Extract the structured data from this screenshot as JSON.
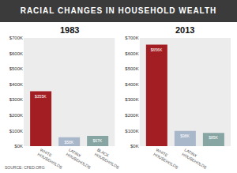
{
  "title": "RACIAL CHANGES IN HOUSEHOLD WEALTH",
  "source": "SOURCE: CFED.ORG",
  "chart_data": [
    {
      "type": "bar",
      "title": "1983",
      "categories": [
        "WHITE HOUSEHOLDS",
        "LATINX HOUSEHOLDS",
        "BLACK HOUSEHOLDS"
      ],
      "values": [
        355,
        58,
        67
      ],
      "value_labels": [
        "$355K",
        "$58K",
        "$67K"
      ],
      "colors": [
        "#a31e22",
        "#a9b7cb",
        "#86a5a3"
      ],
      "data_labels": true,
      "grid": false,
      "ylim": [
        0,
        700
      ],
      "yticks": [
        {
          "value": 0,
          "label": "$0K"
        },
        {
          "value": 100,
          "label": "$100K"
        },
        {
          "value": 200,
          "label": "$200K"
        },
        {
          "value": 300,
          "label": "$300K"
        },
        {
          "value": 400,
          "label": "$400K"
        },
        {
          "value": 500,
          "label": "$500K"
        },
        {
          "value": 600,
          "label": "$600K"
        },
        {
          "value": 700,
          "label": "$700K"
        }
      ]
    },
    {
      "type": "bar",
      "title": "2013",
      "categories": [
        "WHITE HOUSEHOLDS",
        "LATINX HOUSEHOLDS",
        "BLACK HOUSEHOLDS"
      ],
      "values": [
        656,
        98,
        85
      ],
      "value_labels": [
        "$656K",
        "$98K",
        "$85K"
      ],
      "colors": [
        "#a31e22",
        "#a9b7cb",
        "#86a5a3"
      ],
      "data_labels": true,
      "grid": false,
      "ylim": [
        0,
        700
      ],
      "yticks": [
        {
          "value": 0,
          "label": "$0K"
        },
        {
          "value": 100,
          "label": "$100K"
        },
        {
          "value": 200,
          "label": "$200K"
        },
        {
          "value": 300,
          "label": "$300K"
        },
        {
          "value": 400,
          "label": "$400K"
        },
        {
          "value": 500,
          "label": "$500K"
        },
        {
          "value": 600,
          "label": "$600K"
        },
        {
          "value": 700,
          "label": "$700K"
        }
      ]
    }
  ]
}
